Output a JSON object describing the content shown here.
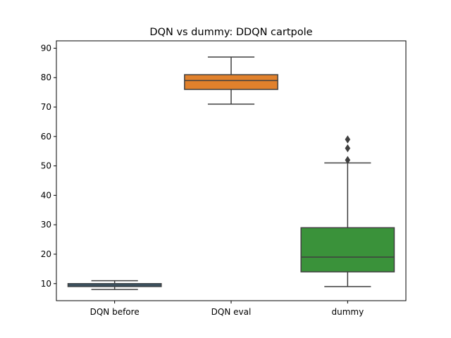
{
  "chart_data": {
    "type": "box",
    "title": "DQN vs dummy: DDQN cartpole",
    "xlabel": "",
    "ylabel": "",
    "categories": [
      "DQN before",
      "DQN eval",
      "dummy"
    ],
    "ylim": [
      4.2,
      92.5
    ],
    "yticks": [
      10,
      20,
      30,
      40,
      50,
      60,
      70,
      80,
      90
    ],
    "grid": false,
    "boxes": [
      {
        "name": "DQN before",
        "color": "#3274a1",
        "whisker_low": 8,
        "q1": 9,
        "median": 9.5,
        "q3": 10,
        "whisker_high": 11,
        "outliers": []
      },
      {
        "name": "DQN eval",
        "color": "#e1812c",
        "whisker_low": 71,
        "q1": 76,
        "median": 79,
        "q3": 81,
        "whisker_high": 87,
        "outliers": []
      },
      {
        "name": "dummy",
        "color": "#3a923a",
        "whisker_low": 9,
        "q1": 14,
        "median": 19,
        "q3": 29,
        "whisker_high": 51,
        "outliers": [
          52,
          56,
          59
        ]
      }
    ]
  }
}
